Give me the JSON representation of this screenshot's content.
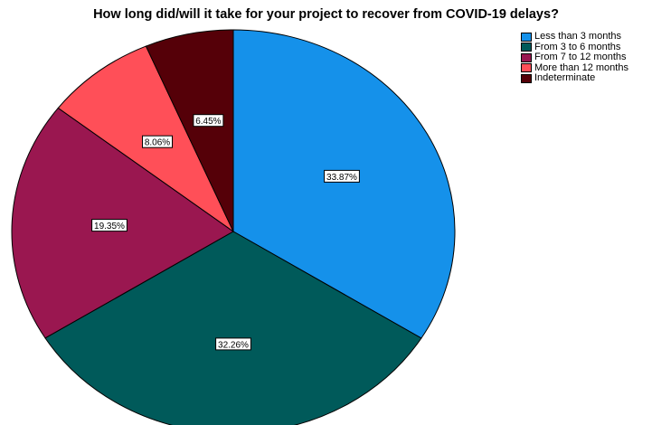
{
  "chart_data": {
    "type": "pie",
    "title": "How long did/will it take for your project to recover from COVID-19 delays?",
    "series": [
      {
        "name": "Less than 3 months",
        "value": 33.87,
        "label": "33.87%",
        "color": "#1591ea"
      },
      {
        "name": "From 3 to 6 months",
        "value": 32.26,
        "label": "32.26%",
        "color": "#005a5a"
      },
      {
        "name": "From 7 to 12 months",
        "value": 19.35,
        "label": "19.35%",
        "color": "#9a1750"
      },
      {
        "name": "More than 12 months",
        "value": 8.06,
        "label": "8.06%",
        "color": "#ff4f58"
      },
      {
        "name": "Indeterminate",
        "value": 6.45,
        "label": "6.45%",
        "color": "#550008"
      }
    ],
    "legend_position": "top-right"
  }
}
